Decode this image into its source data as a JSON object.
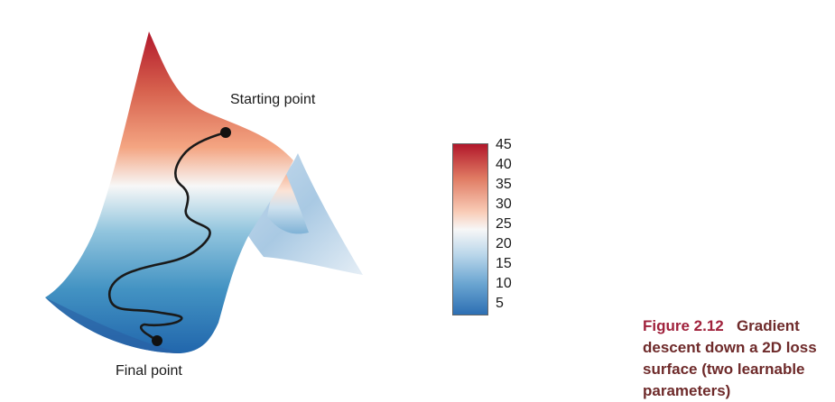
{
  "labels": {
    "start": "Starting point",
    "final": "Final point"
  },
  "colorbar": {
    "ticks": [
      "45",
      "40",
      "35",
      "30",
      "25",
      "20",
      "15",
      "10",
      "5"
    ],
    "colors": {
      "high": "#b2182b",
      "mid": "#f4f4f4",
      "low": "#2166ac"
    }
  },
  "caption": {
    "figure_number": "Figure 2.12",
    "text": "Gradient descent down a 2D loss surface (two learnable parameters)"
  }
}
